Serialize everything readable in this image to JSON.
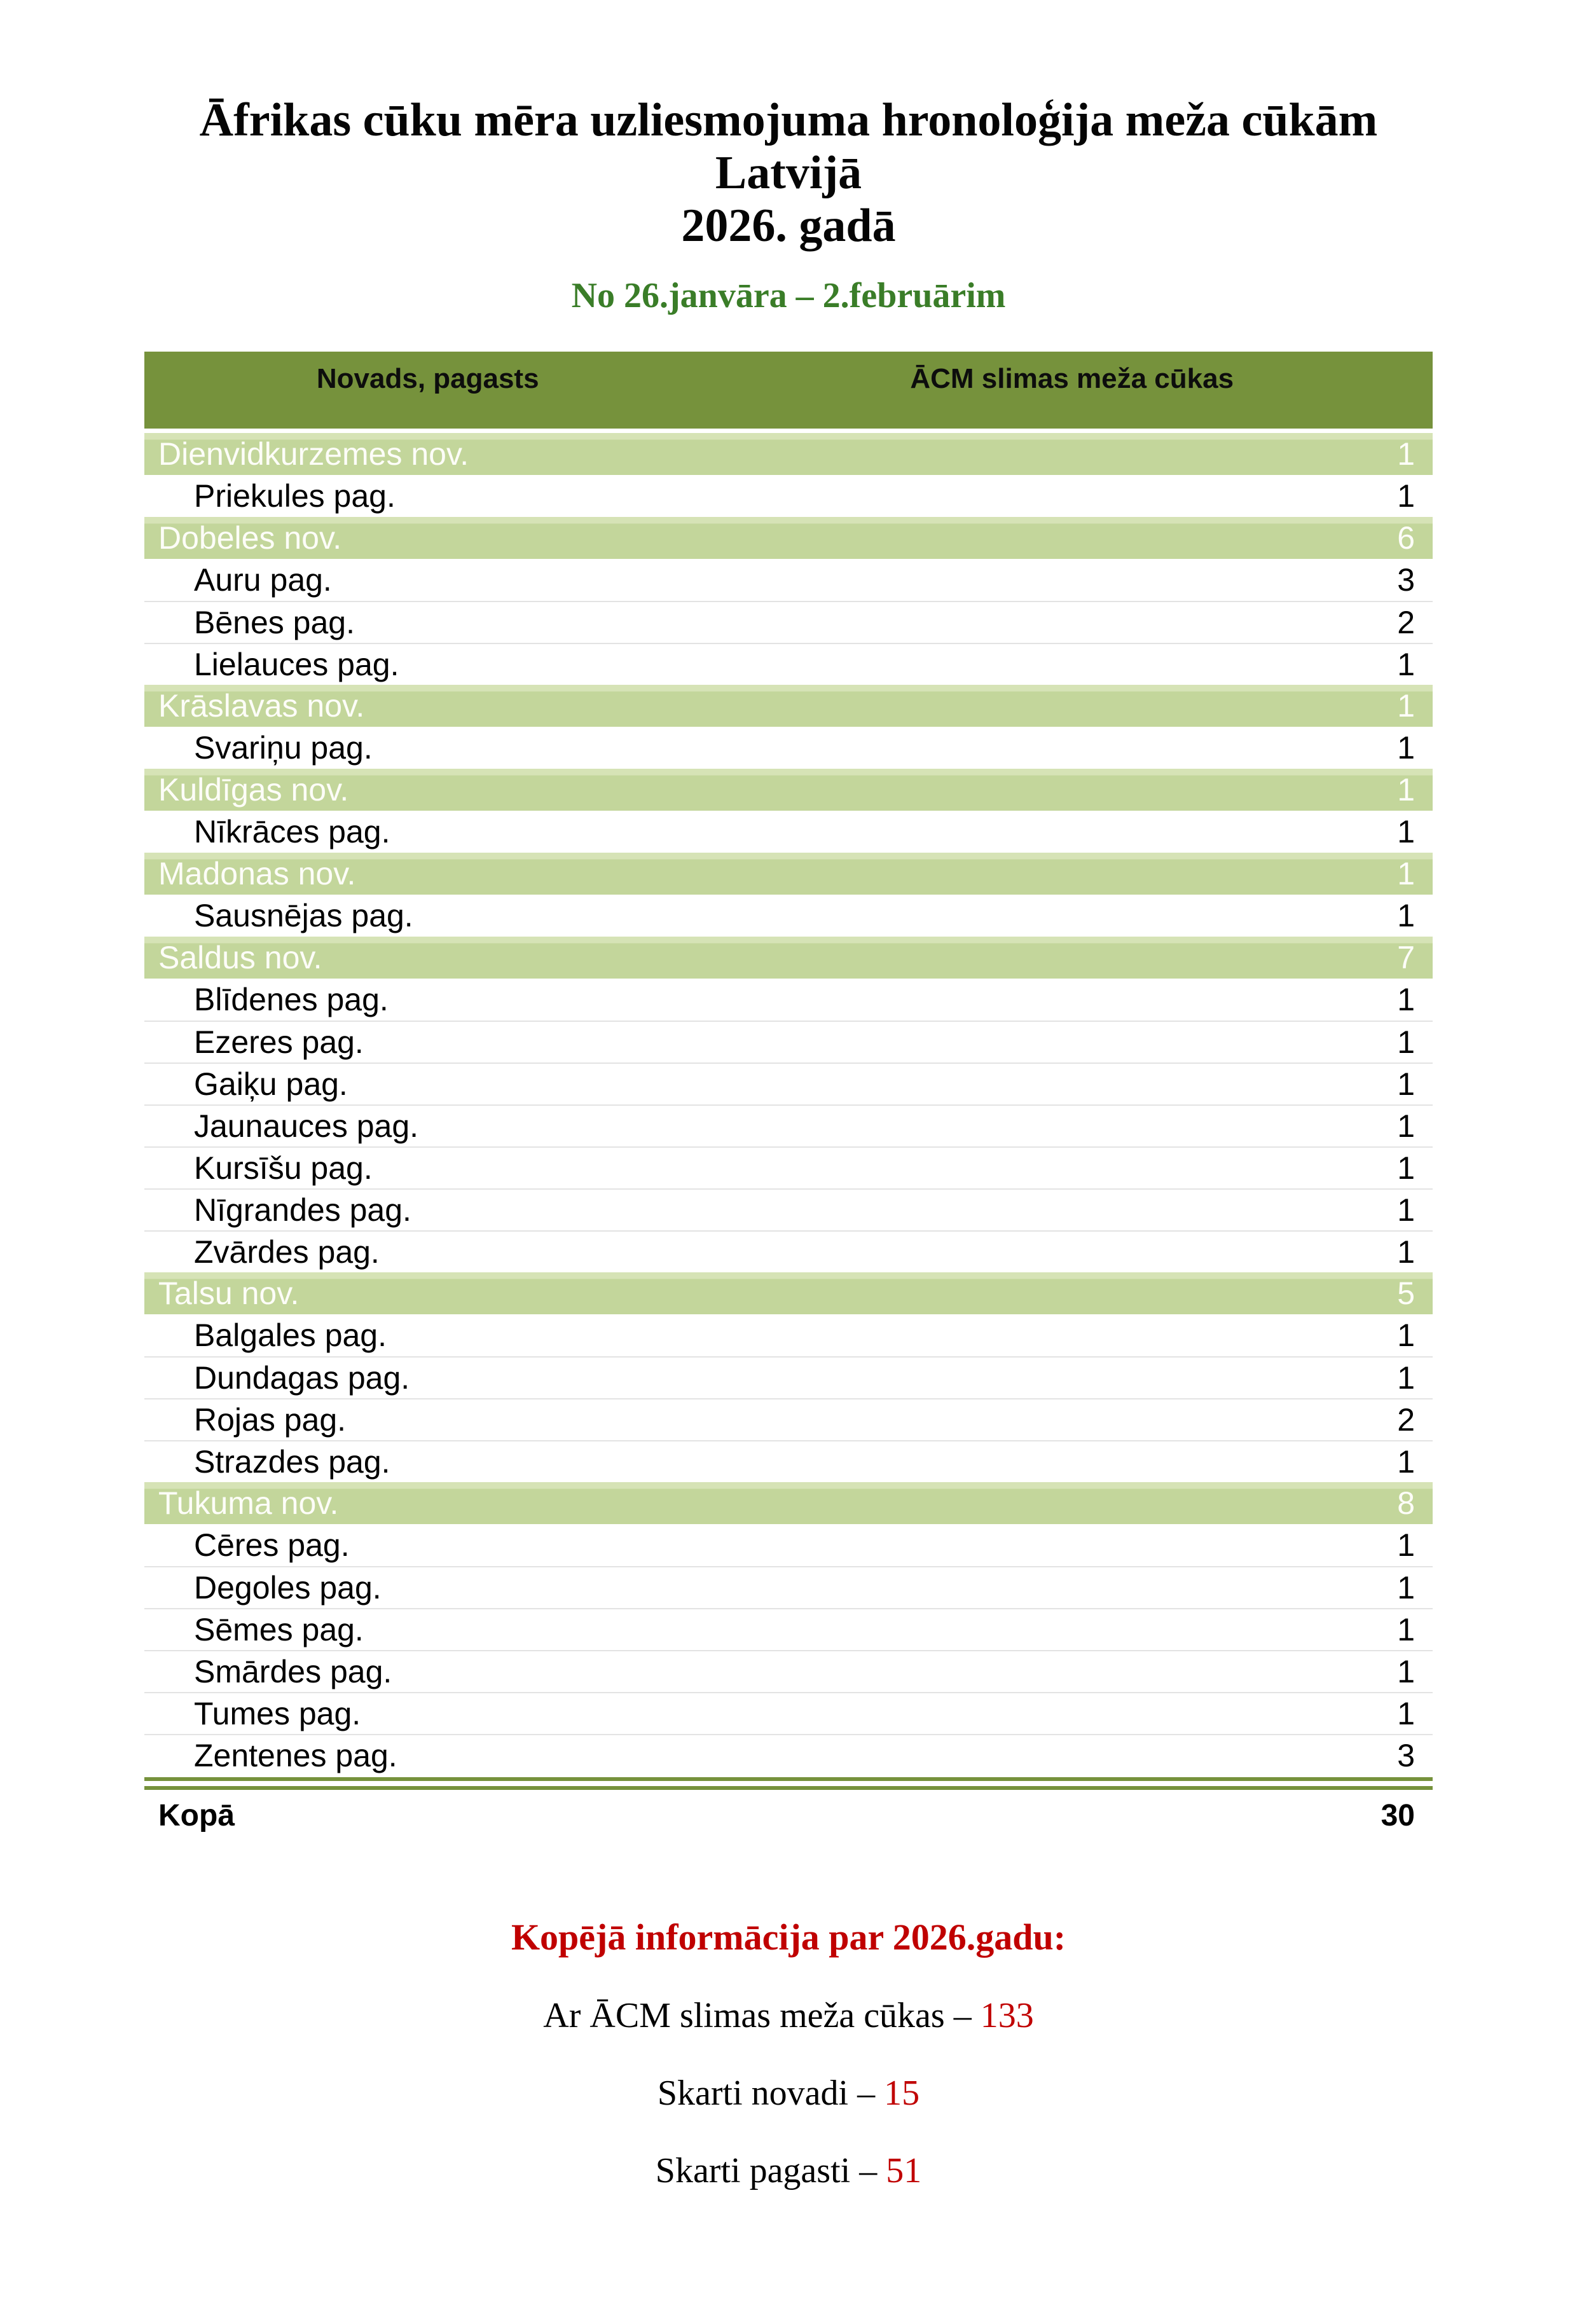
{
  "document": {
    "title_line1": "Āfrikas cūku mēra uzliesmojuma hronoloģija meža cūkām Latvijā",
    "title_line2": "2026. gadā",
    "date_range": "No 26.janvāra – 2.februārim"
  },
  "table": {
    "col1_header": "Novads, pagasts",
    "col2_header": "ĀCM slimas meža cūkas",
    "rows": [
      {
        "label": "Dienvidkurzemes nov.",
        "value": "1",
        "type": "novads"
      },
      {
        "label": "Priekules pag.",
        "value": "1",
        "type": "pagasts"
      },
      {
        "label": "Dobeles nov.",
        "value": "6",
        "type": "novads"
      },
      {
        "label": "Auru pag.",
        "value": "3",
        "type": "pagasts"
      },
      {
        "label": "Bēnes pag.",
        "value": "2",
        "type": "pagasts"
      },
      {
        "label": "Lielauces pag.",
        "value": "1",
        "type": "pagasts"
      },
      {
        "label": "Krāslavas nov.",
        "value": "1",
        "type": "novads"
      },
      {
        "label": "Svariņu pag.",
        "value": "1",
        "type": "pagasts"
      },
      {
        "label": "Kuldīgas nov.",
        "value": "1",
        "type": "novads"
      },
      {
        "label": "Nīkrāces pag.",
        "value": "1",
        "type": "pagasts"
      },
      {
        "label": "Madonas nov.",
        "value": "1",
        "type": "novads"
      },
      {
        "label": "Sausnējas pag.",
        "value": "1",
        "type": "pagasts"
      },
      {
        "label": "Saldus nov.",
        "value": "7",
        "type": "novads"
      },
      {
        "label": "Blīdenes pag.",
        "value": "1",
        "type": "pagasts"
      },
      {
        "label": "Ezeres pag.",
        "value": "1",
        "type": "pagasts"
      },
      {
        "label": "Gaiķu pag.",
        "value": "1",
        "type": "pagasts"
      },
      {
        "label": "Jaunauces pag.",
        "value": "1",
        "type": "pagasts"
      },
      {
        "label": "Kursīšu pag.",
        "value": "1",
        "type": "pagasts"
      },
      {
        "label": "Nīgrandes pag.",
        "value": "1",
        "type": "pagasts"
      },
      {
        "label": "Zvārdes pag.",
        "value": "1",
        "type": "pagasts"
      },
      {
        "label": "Talsu nov.",
        "value": "5",
        "type": "novads"
      },
      {
        "label": "Balgales pag.",
        "value": "1",
        "type": "pagasts"
      },
      {
        "label": "Dundagas pag.",
        "value": "1",
        "type": "pagasts"
      },
      {
        "label": "Rojas pag.",
        "value": "2",
        "type": "pagasts"
      },
      {
        "label": "Strazdes pag.",
        "value": "1",
        "type": "pagasts"
      },
      {
        "label": "Tukuma nov.",
        "value": "8",
        "type": "novads"
      },
      {
        "label": "Cēres pag.",
        "value": "1",
        "type": "pagasts"
      },
      {
        "label": "Degoles pag.",
        "value": "1",
        "type": "pagasts"
      },
      {
        "label": "Sēmes pag.",
        "value": "1",
        "type": "pagasts"
      },
      {
        "label": "Smārdes pag.",
        "value": "1",
        "type": "pagasts"
      },
      {
        "label": "Tumes pag.",
        "value": "1",
        "type": "pagasts"
      },
      {
        "label": "Zentenes pag.",
        "value": "3",
        "type": "pagasts"
      }
    ],
    "total": {
      "label": "Kopā",
      "value": "30"
    }
  },
  "summary": {
    "heading": "Kopējā informācija par 2026.gadu:",
    "lines": [
      {
        "label": "Ar ĀCM slimas meža cūkas",
        "dash": "–",
        "value": "133"
      },
      {
        "label": "Skarti novadi",
        "dash": "–",
        "value": "15"
      },
      {
        "label": "Skarti pagasti",
        "dash": "–",
        "value": "51"
      }
    ]
  },
  "colors": {
    "header_green": "#76923C",
    "row_green": "#C3D69B",
    "row_green_highlight": "#D6E3B6",
    "subtitle_green": "#3A7D28",
    "accent_red": "#C00000"
  }
}
